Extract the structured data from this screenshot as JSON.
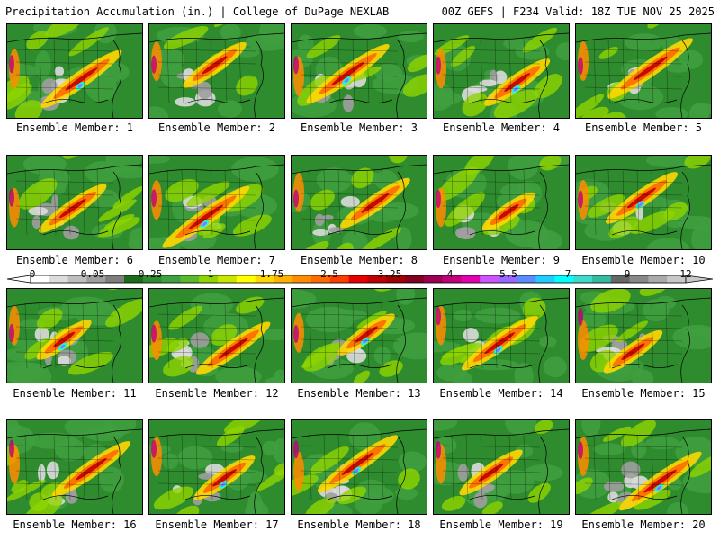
{
  "header": {
    "left_title": "Precipitation Accumulation (in.) | College of DuPage NEXLAB",
    "right_title": "00Z GEFS | F234 Valid: 18Z TUE NOV 25 2025"
  },
  "panels": [
    {
      "caption": "Ensemble Member: 1",
      "member": 1
    },
    {
      "caption": "Ensemble Member: 2",
      "member": 2
    },
    {
      "caption": "Ensemble Member: 3",
      "member": 3
    },
    {
      "caption": "Ensemble Member: 4",
      "member": 4
    },
    {
      "caption": "Ensemble Member: 5",
      "member": 5
    },
    {
      "caption": "Ensemble Member: 6",
      "member": 6
    },
    {
      "caption": "Ensemble Member: 7",
      "member": 7
    },
    {
      "caption": "Ensemble Member: 8",
      "member": 8
    },
    {
      "caption": "Ensemble Member: 9",
      "member": 9
    },
    {
      "caption": "Ensemble Member: 10",
      "member": 10
    },
    {
      "caption": "Ensemble Member: 11",
      "member": 11
    },
    {
      "caption": "Ensemble Member: 12",
      "member": 12
    },
    {
      "caption": "Ensemble Member: 13",
      "member": 13
    },
    {
      "caption": "Ensemble Member: 14",
      "member": 14
    },
    {
      "caption": "Ensemble Member: 15",
      "member": 15
    },
    {
      "caption": "Ensemble Member: 16",
      "member": 16
    },
    {
      "caption": "Ensemble Member: 17",
      "member": 17
    },
    {
      "caption": "Ensemble Member: 18",
      "member": 18
    },
    {
      "caption": "Ensemble Member: 19",
      "member": 19
    },
    {
      "caption": "Ensemble Member: 20",
      "member": 20
    }
  ],
  "colorbar": {
    "labels": [
      "0",
      "0.05",
      "0.25",
      "1",
      "1.75",
      "2.5",
      "3.25",
      "4",
      "5.5",
      "7",
      "9",
      "12"
    ],
    "colors": [
      "#ffffff",
      "#dcdcdc",
      "#bebebe",
      "#9e9e9e",
      "#7e7e7e",
      "#1a6b1a",
      "#2e8b2e",
      "#3fa03f",
      "#58b82e",
      "#8fd400",
      "#c8e600",
      "#ffff00",
      "#ffd700",
      "#ffb000",
      "#ff8c00",
      "#ff6a00",
      "#ff3c00",
      "#e60000",
      "#c00000",
      "#a00000",
      "#800020",
      "#9b0050",
      "#c0007a",
      "#e000b0",
      "#cc55ff",
      "#9966ff",
      "#5a8cff",
      "#22ccff",
      "#00ffff",
      "#40d8c8",
      "#33bba0",
      "#666666",
      "#888888",
      "#aaaaaa",
      "#c8c8c8"
    ]
  }
}
